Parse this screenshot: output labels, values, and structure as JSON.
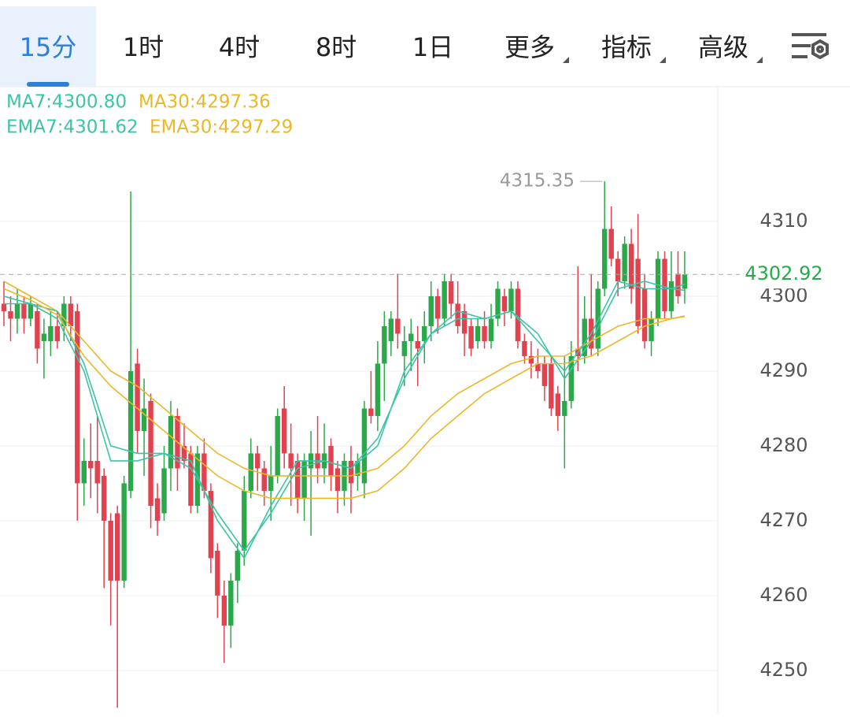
{
  "tabs": [
    {
      "label": "15分",
      "active": true
    },
    {
      "label": "1时"
    },
    {
      "label": "4时"
    },
    {
      "label": "8时"
    },
    {
      "label": "1日"
    },
    {
      "label": "更多",
      "dropdown": true
    },
    {
      "label": "指标",
      "dropdown": true
    },
    {
      "label": "高级",
      "dropdown": true
    }
  ],
  "chart_data": {
    "type": "candlestick",
    "open": [
      4299,
      4298,
      4297,
      4299,
      4297,
      4298,
      4294,
      4294,
      4296,
      4296,
      4299,
      4298,
      4275,
      4278,
      4278,
      4276,
      4270,
      4271,
      4262,
      4274,
      4291,
      4282,
      4286,
      4273,
      4271,
      4277,
      4284,
      4280,
      4279,
      4272,
      4279,
      4274,
      4266,
      4260,
      4256,
      4262,
      4266,
      4274,
      4279,
      4277,
      4274,
      4276,
      4285,
      4279,
      4278,
      4273,
      4277,
      4279,
      4277,
      4280,
      4277,
      4274,
      4278,
      4276,
      4275,
      4285,
      4284,
      4291,
      4294,
      4297,
      4292,
      4294,
      4294,
      4294,
      4296,
      4300,
      4297,
      4302,
      4299,
      4298,
      4296,
      4294,
      4296,
      4294,
      4297,
      4300,
      4298,
      4301,
      4294,
      4292,
      4291,
      4291,
      4291,
      4287,
      4284,
      4286,
      4293,
      4292,
      4297,
      4293,
      4301,
      4309,
      4305,
      4302,
      4307,
      4305,
      4301,
      4294,
      4297,
      4305,
      4298,
      4303,
      4301
    ],
    "high": [
      4302,
      4300,
      4301,
      4300,
      4300,
      4299,
      4297,
      4298,
      4298,
      4300,
      4300,
      4299,
      4281,
      4283,
      4284,
      4277,
      4271,
      4272,
      4276,
      4314,
      4293,
      4289,
      4287,
      4275,
      4280,
      4286,
      4285,
      4283,
      4280,
      4280,
      4281,
      4275,
      4267,
      4262,
      4263,
      4267,
      4276,
      4281,
      4280,
      4278,
      4280,
      4285,
      4288,
      4283,
      4279,
      4279,
      4282,
      4284,
      4283,
      4281,
      4278,
      4279,
      4280,
      4279,
      4286,
      4290,
      4294,
      4298,
      4298,
      4303,
      4296,
      4297,
      4296,
      4298,
      4302,
      4301,
      4303,
      4303,
      4302,
      4299,
      4297,
      4297,
      4298,
      4299,
      4302,
      4301,
      4302,
      4302,
      4295,
      4294,
      4293,
      4292,
      4292,
      4288,
      4292,
      4294,
      4304,
      4300,
      4303,
      4302,
      4315.35,
      4312,
      4306,
      4308,
      4309,
      4311,
      4303,
      4298,
      4306,
      4306,
      4306,
      4306,
      4306
    ],
    "low": [
      4296,
      4294,
      4295,
      4295,
      4296,
      4291,
      4289,
      4292,
      4293,
      4294,
      4294,
      4270,
      4272,
      4273,
      4271,
      4261,
      4256,
      4245,
      4261,
      4273,
      4279,
      4276,
      4269,
      4268,
      4270,
      4274,
      4274,
      4277,
      4271,
      4271,
      4273,
      4263,
      4257,
      4251,
      4253,
      4259,
      4264,
      4273,
      4274,
      4272,
      4270,
      4275,
      4277,
      4272,
      4271,
      4270,
      4268,
      4275,
      4275,
      4274,
      4271,
      4272,
      4271,
      4274,
      4273,
      4283,
      4282,
      4286,
      4292,
      4293,
      4288,
      4290,
      4288,
      4291,
      4294,
      4295,
      4296,
      4297,
      4295,
      4292,
      4292,
      4293,
      4293,
      4293,
      4296,
      4296,
      4297,
      4293,
      4291,
      4289,
      4289,
      4286,
      4284,
      4282,
      4277,
      4285,
      4290,
      4291,
      4292,
      4292,
      4300,
      4304,
      4300,
      4301,
      4299,
      4295,
      4293,
      4292,
      4296,
      4297,
      4297,
      4299,
      4299
    ],
    "close": [
      4298,
      4297,
      4299,
      4297,
      4299,
      4293,
      4295,
      4296,
      4294,
      4299,
      4296,
      4275,
      4278,
      4277,
      4275,
      4270,
      4262,
      4262,
      4275,
      4290,
      4282,
      4285,
      4272,
      4270,
      4277,
      4284,
      4277,
      4278,
      4272,
      4279,
      4274,
      4265,
      4260,
      4256,
      4262,
      4266,
      4274,
      4279,
      4277,
      4274,
      4276,
      4284,
      4279,
      4277,
      4273,
      4278,
      4279,
      4277,
      4279,
      4276,
      4274,
      4278,
      4275,
      4278,
      4285,
      4284,
      4291,
      4296,
      4297,
      4295,
      4294,
      4295,
      4293,
      4296,
      4300,
      4297,
      4302,
      4299,
      4296,
      4295,
      4293,
      4296,
      4294,
      4297,
      4301,
      4298,
      4301,
      4294,
      4292,
      4291,
      4290,
      4288,
      4285,
      4284,
      4286,
      4292,
      4292,
      4297,
      4293,
      4301,
      4309,
      4305,
      4302,
      4307,
      4301,
      4296,
      4294,
      4297,
      4305,
      4298,
      4302,
      4300,
      4302.92
    ],
    "up_color": "#2ba84a",
    "down_color": "#e0424f",
    "ylim": [
      4244.2,
      4328
    ],
    "yticks": [
      4250,
      4260,
      4270,
      4280,
      4290,
      4300,
      4310
    ],
    "grid": true,
    "last_price": 4302.92,
    "high_label": 4315.35,
    "series": [
      {
        "label": "MA7:4300.80",
        "color": "#3cc4a6",
        "x": [
          0,
          4,
          8,
          12,
          16,
          20,
          24,
          28,
          32,
          36,
          40,
          44,
          48,
          52,
          56,
          60,
          64,
          68,
          72,
          76,
          80,
          84,
          88,
          92,
          96,
          100,
          102
        ],
        "values": [
          4299,
          4299,
          4297,
          4290,
          4278,
          4278,
          4279,
          4278,
          4270,
          4265,
          4272,
          4278,
          4278,
          4277,
          4280,
          4290,
          4295,
          4298,
          4297,
          4298,
          4295,
          4289,
          4294,
          4301,
          4302,
          4301,
          4300.8
        ]
      },
      {
        "label": "MA30:4297.36",
        "color": "#e9b82a",
        "x": [
          0,
          4,
          8,
          12,
          16,
          20,
          24,
          28,
          32,
          36,
          40,
          44,
          48,
          52,
          56,
          60,
          64,
          68,
          72,
          76,
          80,
          84,
          88,
          92,
          96,
          100,
          102
        ],
        "values": [
          4302,
          4300,
          4298,
          4294,
          4290,
          4288,
          4285,
          4282,
          4279,
          4277,
          4276,
          4276,
          4276,
          4276,
          4277,
          4280,
          4284,
          4287,
          4289,
          4291,
          4292,
          4292,
          4294,
          4296,
          4297,
          4297,
          4297.36
        ]
      },
      {
        "label": "EMA7:4301.62",
        "color": "#3cc4a6",
        "x": [
          0,
          4,
          8,
          12,
          16,
          20,
          24,
          28,
          32,
          36,
          40,
          44,
          48,
          52,
          56,
          60,
          64,
          68,
          72,
          76,
          80,
          84,
          88,
          92,
          96,
          100,
          102
        ],
        "values": [
          4300,
          4299,
          4298,
          4291,
          4280,
          4279,
          4279,
          4277,
          4271,
          4266,
          4271,
          4277,
          4278,
          4277,
          4281,
          4289,
          4295,
          4297,
          4297,
          4298,
          4294,
          4290,
          4295,
          4302,
          4301,
          4301,
          4301.62
        ]
      },
      {
        "label": "EMA30:4297.29",
        "color": "#e9b82a",
        "x": [
          0,
          4,
          8,
          12,
          16,
          20,
          24,
          28,
          32,
          36,
          40,
          44,
          48,
          52,
          56,
          60,
          64,
          68,
          72,
          76,
          80,
          84,
          88,
          92,
          96,
          100,
          102
        ],
        "values": [
          4301,
          4299.5,
          4297.5,
          4292,
          4288,
          4285,
          4282,
          4279,
          4276,
          4274,
          4273,
          4273,
          4273,
          4273,
          4274,
          4277,
          4281,
          4284,
          4287,
          4289,
          4291,
          4291,
          4292,
          4294,
          4296,
          4297,
          4297.29
        ]
      }
    ]
  }
}
